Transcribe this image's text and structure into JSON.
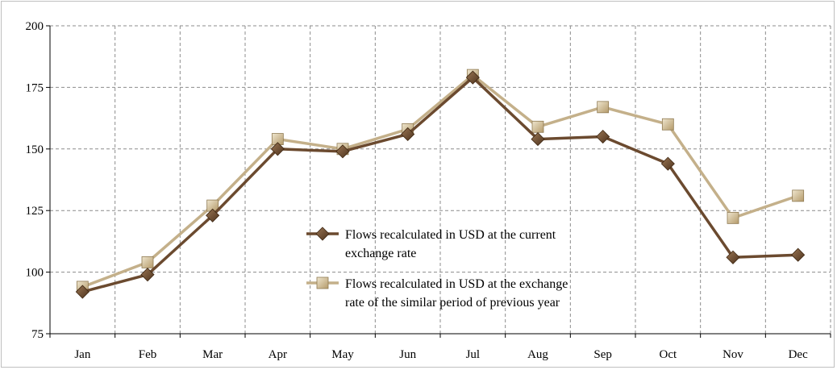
{
  "chart_data": {
    "type": "line",
    "title": "",
    "xlabel": "",
    "ylabel": "",
    "categories": [
      "Jan",
      "Feb",
      "Mar",
      "Apr",
      "May",
      "Jun",
      "Jul",
      "Aug",
      "Sep",
      "Oct",
      "Nov",
      "Dec"
    ],
    "ylim": [
      75,
      200
    ],
    "yticks": [
      "75",
      "100",
      "125",
      "150",
      "175",
      "200"
    ],
    "grid": true,
    "legend_position": "center",
    "series": [
      {
        "name": "Flows recalculated in USD at the current exchange rate",
        "legend_lines": [
          "Flows recalculated in USD at the current",
          "exchange rate"
        ],
        "marker": "diamond",
        "color": "#6b4a2f",
        "values": [
          92,
          99,
          123,
          150,
          149,
          156,
          179,
          154,
          155,
          144,
          106,
          107
        ]
      },
      {
        "name": "Flows recalculated in USD at the exchange rate of the similar period of previous year",
        "legend_lines": [
          "Flows recalculated in USD at the exchange",
          "rate of the similar period of previous year"
        ],
        "marker": "square",
        "color": "#c4b08a",
        "values": [
          94,
          104,
          127,
          154,
          150,
          158,
          180,
          159,
          167,
          160,
          122,
          131
        ]
      }
    ]
  }
}
